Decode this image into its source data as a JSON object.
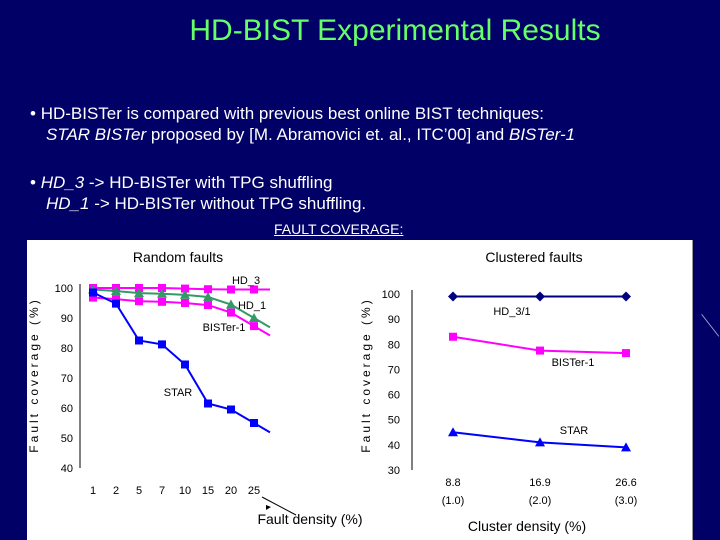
{
  "slide": {
    "title": "HD-BIST Experimental Results",
    "bullet1_line1_marker": "•",
    "bullet1_line1": "HD-BISTer is compared with previous best online BIST techniques:",
    "bullet1_line2_a": "STAR BISTer",
    "bullet1_line2_b": " proposed by [M. Abramovici et. al., ITC’00] and ",
    "bullet1_line2_c": "BISTer-1",
    "bullet2_marker": "•",
    "bullet2_line1_a": "HD_3",
    "bullet2_line1_b": " ->   HD-BISTer with TPG shuffling",
    "bullet2_line2_a": "HD_1",
    "bullet2_line2_b": " ->   HD-BISTer without TPG shuffling.",
    "fault_coverage_label": "FAULT COVERAGE:",
    "colors": {
      "background": "#000066",
      "title": "#66ff66",
      "text": "#ffffff"
    }
  },
  "chart_data": [
    {
      "type": "line",
      "title": "Random faults",
      "xlabel": "Fault density (%)",
      "ylabel": "Fault coverage (%)",
      "categories": [
        "1",
        "2",
        "5",
        "7",
        "10",
        "15",
        "20",
        "25"
      ],
      "ylim": [
        40,
        100
      ],
      "yticks": [
        40,
        50,
        60,
        70,
        80,
        90,
        100
      ],
      "grid": false,
      "series": [
        {
          "name": "HD_3",
          "color": "#ff00ff",
          "marker": "square",
          "values": [
            100,
            100,
            100,
            100,
            99.8,
            99.6,
            99.5,
            99.5
          ]
        },
        {
          "name": "HD_1",
          "color": "#339966",
          "marker": "triangle",
          "values": [
            99,
            98.5,
            97.8,
            97.6,
            97.2,
            96.5,
            94,
            89.5
          ]
        },
        {
          "name": "BISTer-1",
          "color": "#ff00ff",
          "marker": "square",
          "values": [
            99,
            98.5,
            97.8,
            97.6,
            97.2,
            96.5,
            94,
            89.5
          ]
        },
        {
          "name": "STAR",
          "color": "#0000ff",
          "marker": "square",
          "values": [
            98.5,
            94.8,
            82.5,
            81.2,
            74.5,
            61.5,
            59.5,
            55
          ]
        }
      ]
    },
    {
      "type": "line",
      "title": "Clustered faults",
      "xlabel": "Cluster density (%)",
      "ylabel": "Fault coverage (%)",
      "categories": [
        "8.8",
        "16.9",
        "26.6"
      ],
      "category_sublabels": [
        "(1.0)",
        "(2.0)",
        "(3.0)"
      ],
      "ylim": [
        30,
        100
      ],
      "yticks": [
        30,
        40,
        50,
        60,
        70,
        80,
        90,
        100
      ],
      "grid": false,
      "series": [
        {
          "name": "HD_3/1",
          "color": "#000080",
          "marker": "diamond",
          "values": [
            99,
            99,
            99
          ]
        },
        {
          "name": "BISTer-1",
          "color": "#ff00ff",
          "marker": "square",
          "values": [
            83,
            77.5,
            76.5
          ]
        },
        {
          "name": "STAR",
          "color": "#0000ff",
          "marker": "triangle",
          "values": [
            45,
            41,
            39
          ]
        }
      ]
    }
  ]
}
